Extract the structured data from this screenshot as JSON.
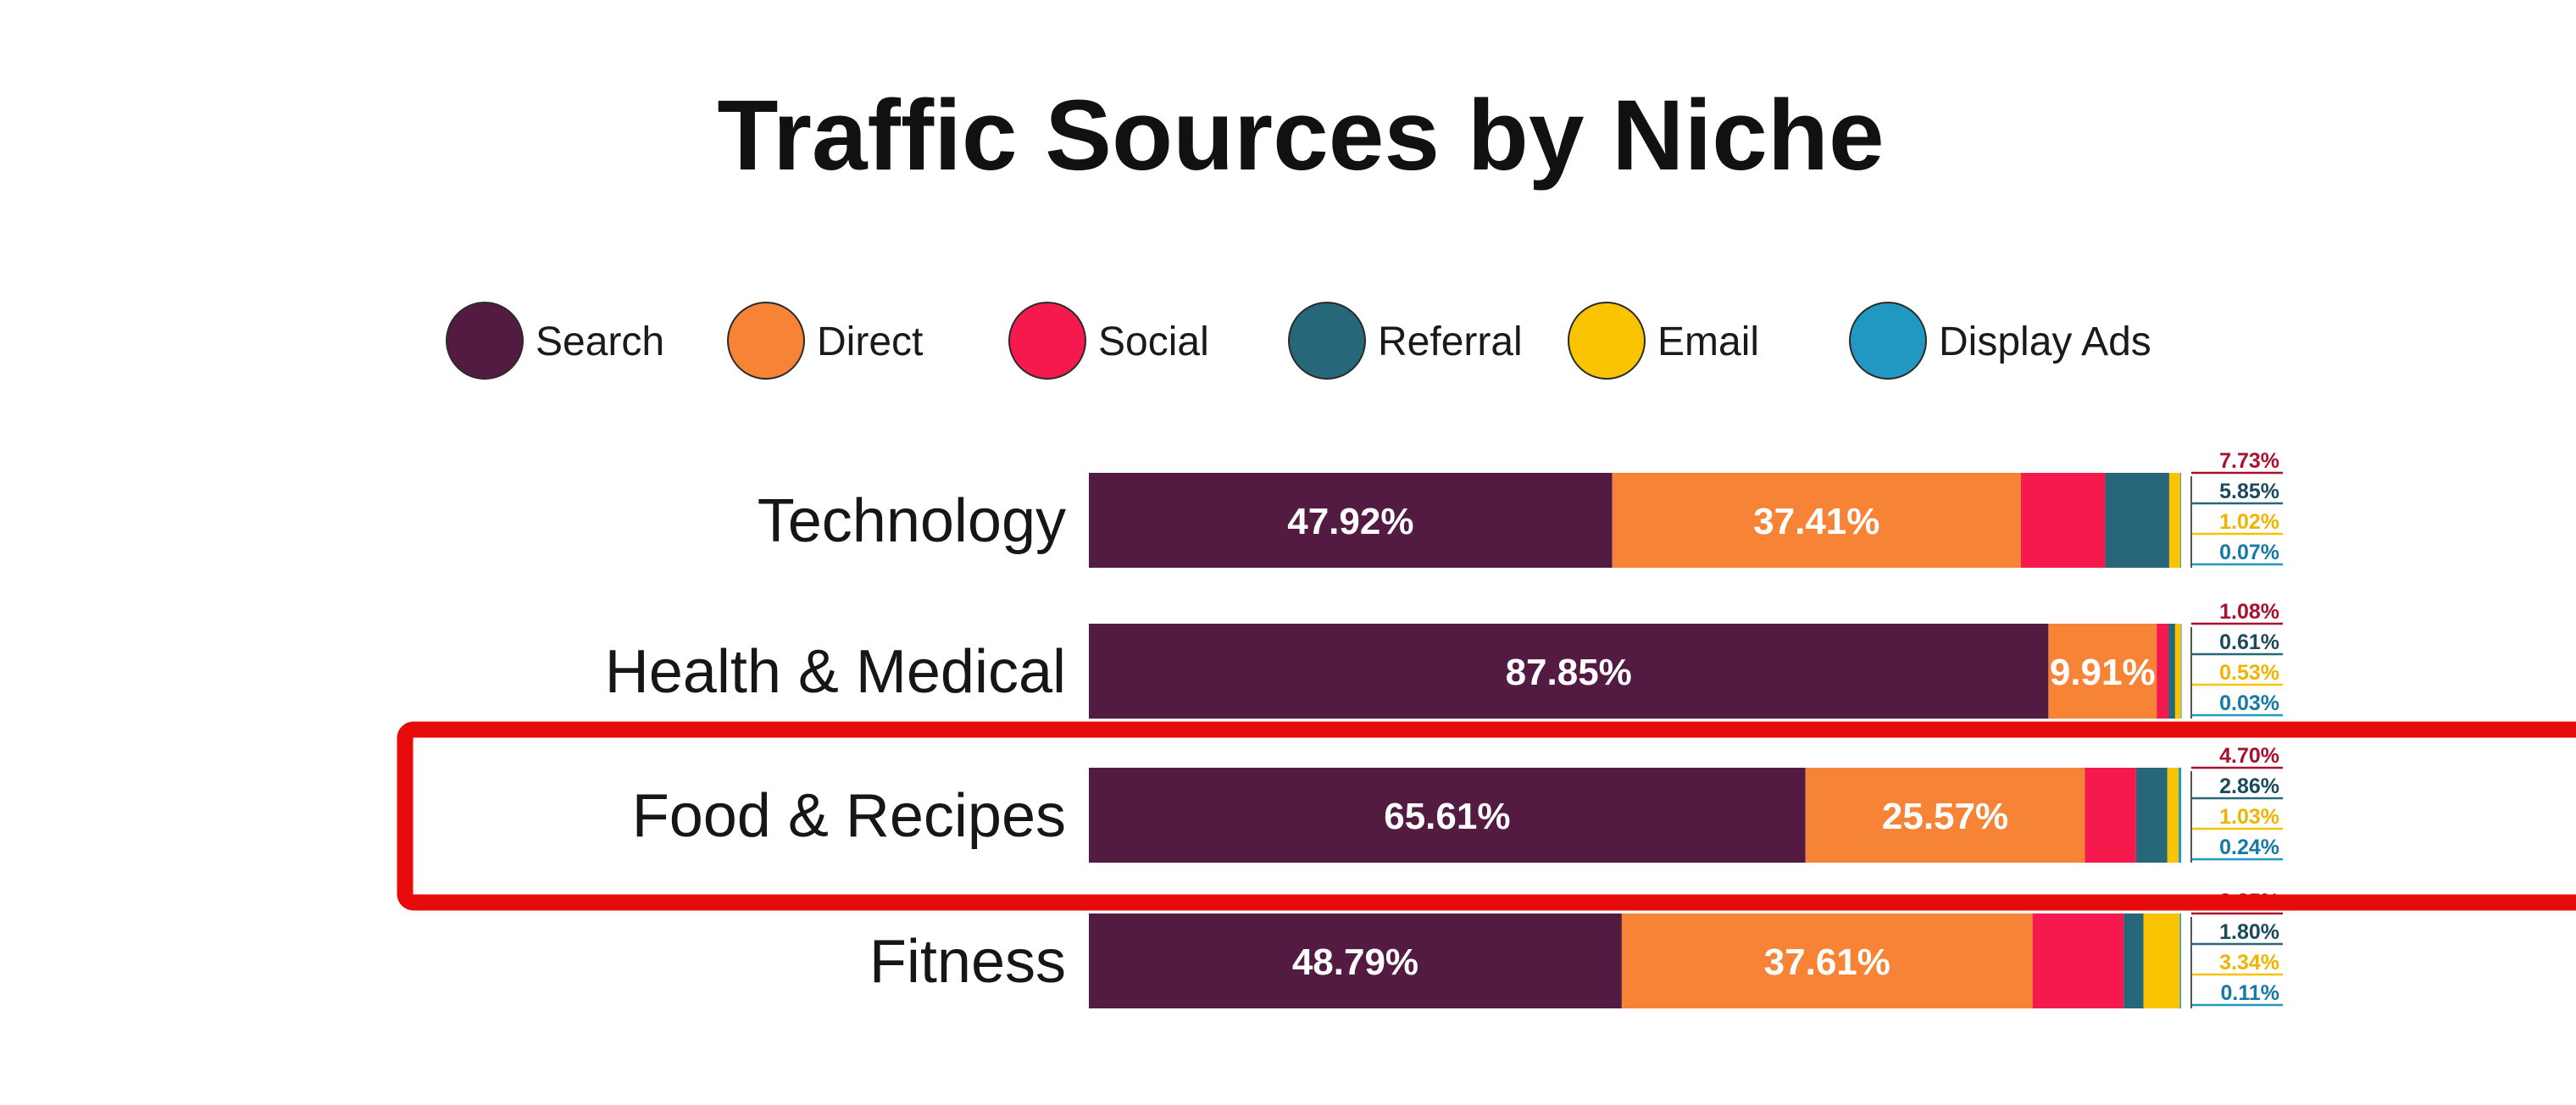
{
  "chart_data": {
    "type": "bar",
    "orientation": "horizontal",
    "stacked": true,
    "title": "Traffic Sources by Niche",
    "categories": [
      "Technology",
      "Health & Medical",
      "Food & Recipes",
      "Fitness"
    ],
    "series": [
      {
        "name": "Search",
        "color": "#531a42",
        "values": [
          47.92,
          87.85,
          65.61,
          48.79
        ]
      },
      {
        "name": "Direct",
        "color": "#f78436",
        "values": [
          37.41,
          9.91,
          25.57,
          37.61
        ]
      },
      {
        "name": "Social",
        "color": "#f5194e",
        "values": [
          7.73,
          1.08,
          4.7,
          8.35
        ]
      },
      {
        "name": "Referral",
        "color": "#27677a",
        "values": [
          5.85,
          0.61,
          2.86,
          1.8
        ]
      },
      {
        "name": "Email",
        "color": "#f9c301",
        "values": [
          1.02,
          0.53,
          1.03,
          3.34
        ]
      },
      {
        "name": "Display Ads",
        "color": "#2198c1",
        "values": [
          0.07,
          0.03,
          0.24,
          0.11
        ]
      }
    ],
    "bar_labels": [
      [
        "47.92%",
        "37.41%"
      ],
      [
        "87.85%",
        "9.91%"
      ],
      [
        "65.61%",
        "25.57%"
      ],
      [
        "48.79%",
        "37.61%"
      ]
    ],
    "side_labels": [
      [
        "7.73%",
        "5.85%",
        "1.02%",
        "0.07%"
      ],
      [
        "1.08%",
        "0.61%",
        "0.53%",
        "0.03%"
      ],
      [
        "4.70%",
        "2.86%",
        "1.03%",
        "0.24%"
      ],
      [
        "8.35%",
        "1.80%",
        "3.34%",
        "0.11%"
      ]
    ],
    "legend_position": "top",
    "grid": false,
    "xlim": [
      0,
      100
    ],
    "highlight": {
      "category": "Food & Recipes",
      "color": "#e80b0b"
    }
  }
}
